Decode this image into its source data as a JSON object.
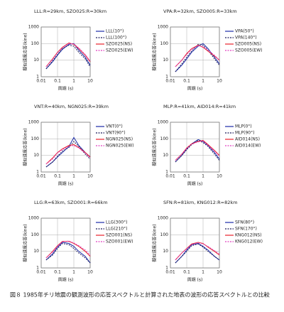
{
  "chart_data": [
    {
      "type": "line",
      "title": "LLL:R=29km, SZO025:R=30km",
      "x_label": "周期 (s)",
      "y_label": "擬似速度応答(kine)",
      "x": [
        0.02,
        0.05,
        0.1,
        0.2,
        0.5,
        1,
        2,
        5,
        10
      ],
      "log_x": true,
      "log_y": true,
      "grid": true,
      "xlim": [
        0.01,
        10
      ],
      "ylim": [
        1,
        1000
      ],
      "xticks": [
        0.01,
        0.1,
        1,
        10
      ],
      "yticks": [
        1,
        10,
        100,
        1000
      ],
      "series": [
        {
          "name": "LLL(10°)",
          "color": "#1a2aa8",
          "style": "solid",
          "values": [
            3,
            8,
            20,
            45,
            90,
            100,
            40,
            15,
            5
          ]
        },
        {
          "name": "LLL(100°)",
          "color": "#1a1a5a",
          "style": "dashed",
          "values": [
            3,
            9,
            22,
            50,
            80,
            70,
            30,
            12,
            4
          ]
        },
        {
          "name": "SZO025(NS)",
          "color": "#e8202a",
          "style": "solid",
          "values": [
            4,
            12,
            30,
            60,
            110,
            90,
            50,
            20,
            8
          ]
        },
        {
          "name": "SZO025(EW)",
          "color": "#e040c0",
          "style": "dashed",
          "values": [
            4,
            11,
            28,
            55,
            100,
            95,
            55,
            22,
            9
          ]
        }
      ]
    },
    {
      "type": "line",
      "title": "VPA:R=32km, SZO005:R=33km",
      "x_label": "周期 (s)",
      "y_label": "擬似速度応答(kine)",
      "x": [
        0.02,
        0.05,
        0.1,
        0.2,
        0.5,
        1,
        2,
        5,
        10
      ],
      "log_x": true,
      "log_y": true,
      "grid": true,
      "xlim": [
        0.01,
        10
      ],
      "ylim": [
        1,
        1000
      ],
      "xticks": [
        0.01,
        0.1,
        1,
        10
      ],
      "yticks": [
        1,
        10,
        100,
        1000
      ],
      "series": [
        {
          "name": "VPA(50°)",
          "color": "#1a2aa8",
          "style": "solid",
          "values": [
            2,
            5,
            12,
            30,
            70,
            100,
            50,
            15,
            6
          ]
        },
        {
          "name": "VPA(140°)",
          "color": "#1a1a5a",
          "style": "dashed",
          "values": [
            2,
            6,
            15,
            35,
            90,
            80,
            40,
            12,
            5
          ]
        },
        {
          "name": "SZO005(NS)",
          "color": "#e8202a",
          "style": "solid",
          "values": [
            4,
            10,
            25,
            50,
            80,
            60,
            35,
            18,
            10
          ]
        },
        {
          "name": "SZO005(EW)",
          "color": "#e040c0",
          "style": "dashed",
          "values": [
            4,
            10,
            22,
            45,
            75,
            65,
            40,
            20,
            10
          ]
        }
      ]
    },
    {
      "type": "line",
      "title": "VNT:R=40km, NGN025:R=39km",
      "x_label": "周期 (s)",
      "y_label": "擬似速度応答(kine)",
      "x": [
        0.02,
        0.05,
        0.1,
        0.2,
        0.5,
        1,
        2,
        5,
        10
      ],
      "log_x": true,
      "log_y": true,
      "grid": true,
      "xlim": [
        0.01,
        10
      ],
      "ylim": [
        1,
        1000
      ],
      "xticks": [
        0.01,
        0.1,
        1,
        10
      ],
      "yticks": [
        1,
        10,
        100,
        1000
      ],
      "series": [
        {
          "name": "VNT(0°)",
          "color": "#1a2aa8",
          "style": "solid",
          "values": [
            2,
            4,
            8,
            15,
            35,
            120,
            40,
            15,
            8
          ]
        },
        {
          "name": "VNT(90°)",
          "color": "#1a1a5a",
          "style": "dashed",
          "values": [
            2,
            4,
            9,
            18,
            30,
            70,
            35,
            12,
            6
          ]
        },
        {
          "name": "NGN025(NS)",
          "color": "#e8202a",
          "style": "solid",
          "values": [
            3,
            7,
            15,
            25,
            40,
            45,
            30,
            15,
            8
          ]
        },
        {
          "name": "NGN025(EW)",
          "color": "#e040c0",
          "style": "dashed",
          "values": [
            3,
            6,
            14,
            22,
            35,
            40,
            28,
            14,
            7
          ]
        }
      ]
    },
    {
      "type": "line",
      "title": "MLP:R=41km, AID014:R=41km",
      "x_label": "周期 (s)",
      "y_label": "擬似速度応答(kine)",
      "x": [
        0.02,
        0.05,
        0.1,
        0.2,
        0.5,
        1,
        2,
        5,
        10
      ],
      "log_x": true,
      "log_y": true,
      "grid": true,
      "xlim": [
        0.01,
        10
      ],
      "ylim": [
        1,
        1000
      ],
      "xticks": [
        0.01,
        0.1,
        1,
        10
      ],
      "yticks": [
        1,
        10,
        100,
        1000
      ],
      "series": [
        {
          "name": "MLP(0°)",
          "color": "#1a2aa8",
          "style": "solid",
          "values": [
            4,
            10,
            25,
            50,
            90,
            70,
            40,
            15,
            6
          ]
        },
        {
          "name": "MLP(90°)",
          "color": "#1a1a5a",
          "style": "dashed",
          "values": [
            4,
            10,
            22,
            45,
            80,
            60,
            35,
            12,
            5
          ]
        },
        {
          "name": "AID014(NS)",
          "color": "#e8202a",
          "style": "solid",
          "values": [
            5,
            12,
            28,
            50,
            70,
            80,
            45,
            20,
            10
          ]
        },
        {
          "name": "AID014(EW)",
          "color": "#e040c0",
          "style": "dashed",
          "values": [
            5,
            12,
            26,
            48,
            65,
            75,
            40,
            18,
            9
          ]
        }
      ]
    },
    {
      "type": "line",
      "title": "LLG:R=63km, SZO001:R=66km",
      "x_label": "周期 (s)",
      "y_label": "擬似速度応答(kine)",
      "x": [
        0.02,
        0.05,
        0.1,
        0.2,
        0.5,
        1,
        2,
        5,
        10
      ],
      "log_x": true,
      "log_y": true,
      "grid": true,
      "xlim": [
        0.01,
        10
      ],
      "ylim": [
        1,
        1000
      ],
      "xticks": [
        0.01,
        0.1,
        1,
        10
      ],
      "yticks": [
        1,
        10,
        100,
        1000
      ],
      "series": [
        {
          "name": "LLG(300°)",
          "color": "#1a2aa8",
          "style": "solid",
          "values": [
            3,
            7,
            18,
            35,
            30,
            20,
            10,
            5,
            2
          ]
        },
        {
          "name": "LLG(210°)",
          "color": "#1a1a5a",
          "style": "dashed",
          "values": [
            3,
            6,
            15,
            30,
            25,
            15,
            8,
            4,
            2
          ]
        },
        {
          "name": "SZO001(NS)",
          "color": "#e8202a",
          "style": "solid",
          "values": [
            4,
            10,
            22,
            40,
            40,
            30,
            20,
            10,
            5
          ]
        },
        {
          "name": "SZO001(EW)",
          "color": "#e040c0",
          "style": "dashed",
          "values": [
            4,
            9,
            20,
            38,
            42,
            32,
            22,
            12,
            6
          ]
        }
      ]
    },
    {
      "type": "line",
      "title": "SFN:R=81km, KNG012:R=82km",
      "x_label": "周期 (s)",
      "y_label": "擬似速度応答(kine)",
      "x": [
        0.02,
        0.05,
        0.1,
        0.2,
        0.5,
        1,
        2,
        5,
        10
      ],
      "log_x": true,
      "log_y": true,
      "grid": true,
      "xlim": [
        0.01,
        10
      ],
      "ylim": [
        1,
        1000
      ],
      "xticks": [
        0.01,
        0.1,
        1,
        10
      ],
      "yticks": [
        1,
        10,
        100,
        1000
      ],
      "series": [
        {
          "name": "SFN(80°)",
          "color": "#1a2aa8",
          "style": "solid",
          "values": [
            2,
            5,
            12,
            25,
            30,
            20,
            12,
            5,
            3
          ]
        },
        {
          "name": "SFN(170°)",
          "color": "#1a1a5a",
          "style": "dashed",
          "values": [
            2,
            5,
            10,
            22,
            28,
            18,
            10,
            5,
            3
          ]
        },
        {
          "name": "KNG012(NS)",
          "color": "#e8202a",
          "style": "solid",
          "values": [
            3,
            8,
            15,
            28,
            35,
            30,
            18,
            10,
            6
          ]
        },
        {
          "name": "KNG012(EW)",
          "color": "#e040c0",
          "style": "dashed",
          "values": [
            3,
            8,
            14,
            26,
            33,
            28,
            20,
            11,
            7
          ]
        }
      ]
    }
  ],
  "caption": "図８ 1985年チリ地震の観測波形の応答スペクトルと計算された地表の波形の応答スペクトルとの比較"
}
